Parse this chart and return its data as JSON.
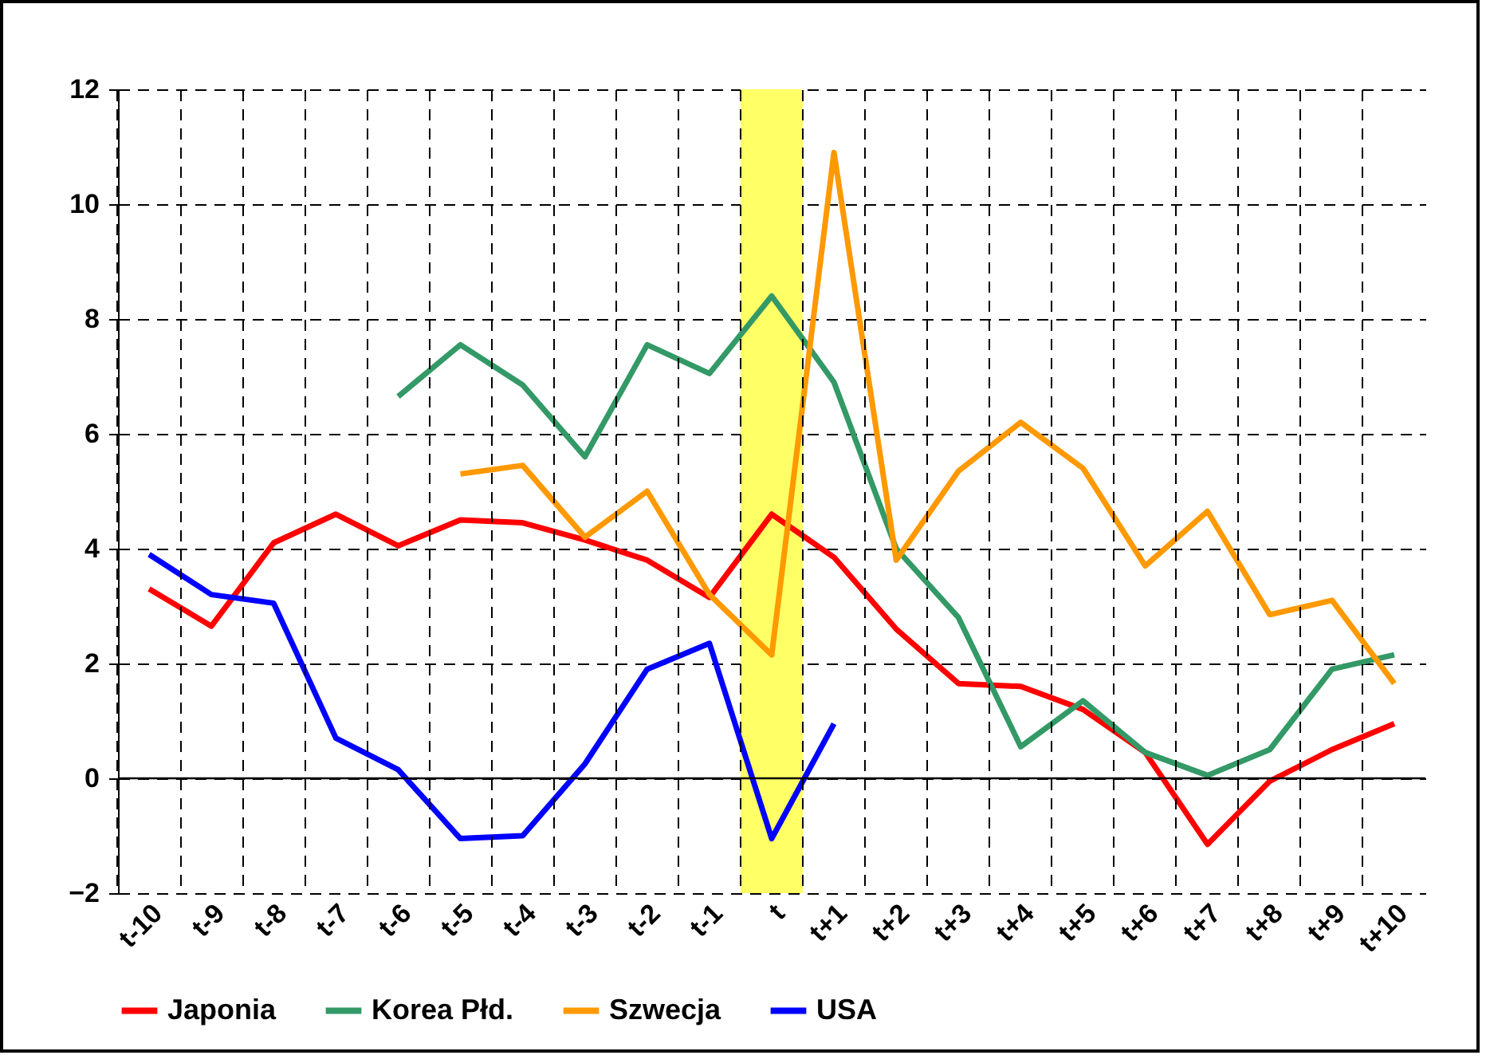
{
  "chart_data": {
    "type": "line",
    "categories": [
      "t-10",
      "t-9",
      "t-8",
      "t-7",
      "t-6",
      "t-5",
      "t-4",
      "t-3",
      "t-2",
      "t-1",
      "t",
      "t+1",
      "t+2",
      "t+3",
      "t+4",
      "t+5",
      "t+6",
      "t+7",
      "t+8",
      "t+9",
      "t+10"
    ],
    "series": [
      {
        "name": "Japonia",
        "color": "#ff0000",
        "values": [
          3.3,
          2.65,
          4.1,
          4.6,
          4.05,
          4.5,
          4.45,
          4.15,
          3.8,
          3.15,
          4.6,
          3.85,
          2.6,
          1.65,
          1.6,
          1.2,
          0.45,
          -1.15,
          -0.05,
          0.5,
          0.95
        ]
      },
      {
        "name": "Korea Płd.",
        "color": "#339966",
        "values": [
          null,
          null,
          null,
          null,
          6.65,
          7.55,
          6.85,
          5.6,
          7.55,
          7.05,
          8.4,
          6.9,
          4.0,
          2.8,
          0.55,
          1.35,
          0.45,
          0.05,
          0.5,
          1.9,
          2.15
        ]
      },
      {
        "name": "Szwecja",
        "color": "#ff9900",
        "values": [
          null,
          null,
          null,
          null,
          null,
          5.3,
          5.45,
          4.2,
          5.0,
          3.2,
          2.15,
          10.9,
          3.8,
          5.35,
          6.2,
          5.4,
          3.7,
          4.65,
          2.85,
          3.1,
          1.65
        ]
      },
      {
        "name": "USA",
        "color": "#0000ff",
        "values": [
          3.9,
          3.2,
          3.05,
          0.7,
          0.15,
          -1.05,
          -1.0,
          0.25,
          1.9,
          2.35,
          -1.05,
          0.95,
          null,
          null,
          null,
          null,
          null,
          null,
          null,
          null,
          null
        ]
      }
    ],
    "ylim": [
      -2,
      12
    ],
    "yticks": [
      -2,
      0,
      2,
      4,
      6,
      8,
      10,
      12
    ],
    "grid": true,
    "legend": "bottom",
    "line_style": "solid",
    "ref_lines": [
      {
        "axis": "y",
        "value": 0
      }
    ],
    "bands": [
      {
        "axis": "x",
        "from": "t",
        "to": "t",
        "color": "#ffff66"
      }
    ]
  }
}
